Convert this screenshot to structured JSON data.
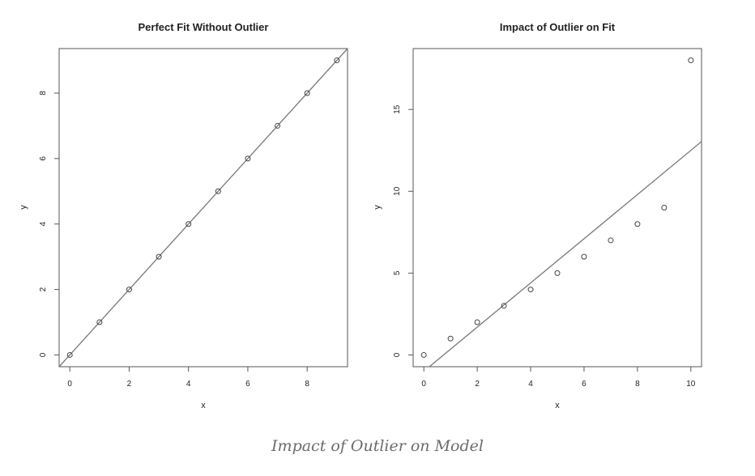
{
  "chart_data": [
    {
      "type": "scatter",
      "title": "Perfect Fit Without Outlier",
      "xlabel": "x",
      "ylabel": "y",
      "xlim": [
        -0.36,
        9.36
      ],
      "ylim": [
        -0.36,
        9.36
      ],
      "xticks": [
        0,
        2,
        4,
        6,
        8
      ],
      "yticks": [
        0,
        2,
        4,
        6,
        8
      ],
      "grid": false,
      "points": {
        "x": [
          0,
          1,
          2,
          3,
          4,
          5,
          6,
          7,
          8,
          9
        ],
        "y": [
          0,
          1,
          2,
          3,
          4,
          5,
          6,
          7,
          8,
          9
        ]
      },
      "fit_line": {
        "intercept": 0,
        "slope": 1
      }
    },
    {
      "type": "scatter",
      "title": "Impact of Outlier on Fit",
      "xlabel": "x",
      "ylabel": "y",
      "xlim": [
        -0.4,
        10.4
      ],
      "ylim": [
        -0.72,
        18.72
      ],
      "xticks": [
        0,
        2,
        4,
        6,
        8,
        10
      ],
      "yticks": [
        0,
        5,
        10,
        15
      ],
      "grid": false,
      "points": {
        "x": [
          0,
          1,
          2,
          3,
          4,
          5,
          6,
          7,
          8,
          9,
          10
        ],
        "y": [
          0,
          1,
          2,
          3,
          4,
          5,
          6,
          7,
          8,
          9,
          18
        ]
      },
      "fit_line": {
        "intercept": -1.0,
        "slope": 1.35
      }
    }
  ],
  "caption": "Impact of Outlier on Model"
}
